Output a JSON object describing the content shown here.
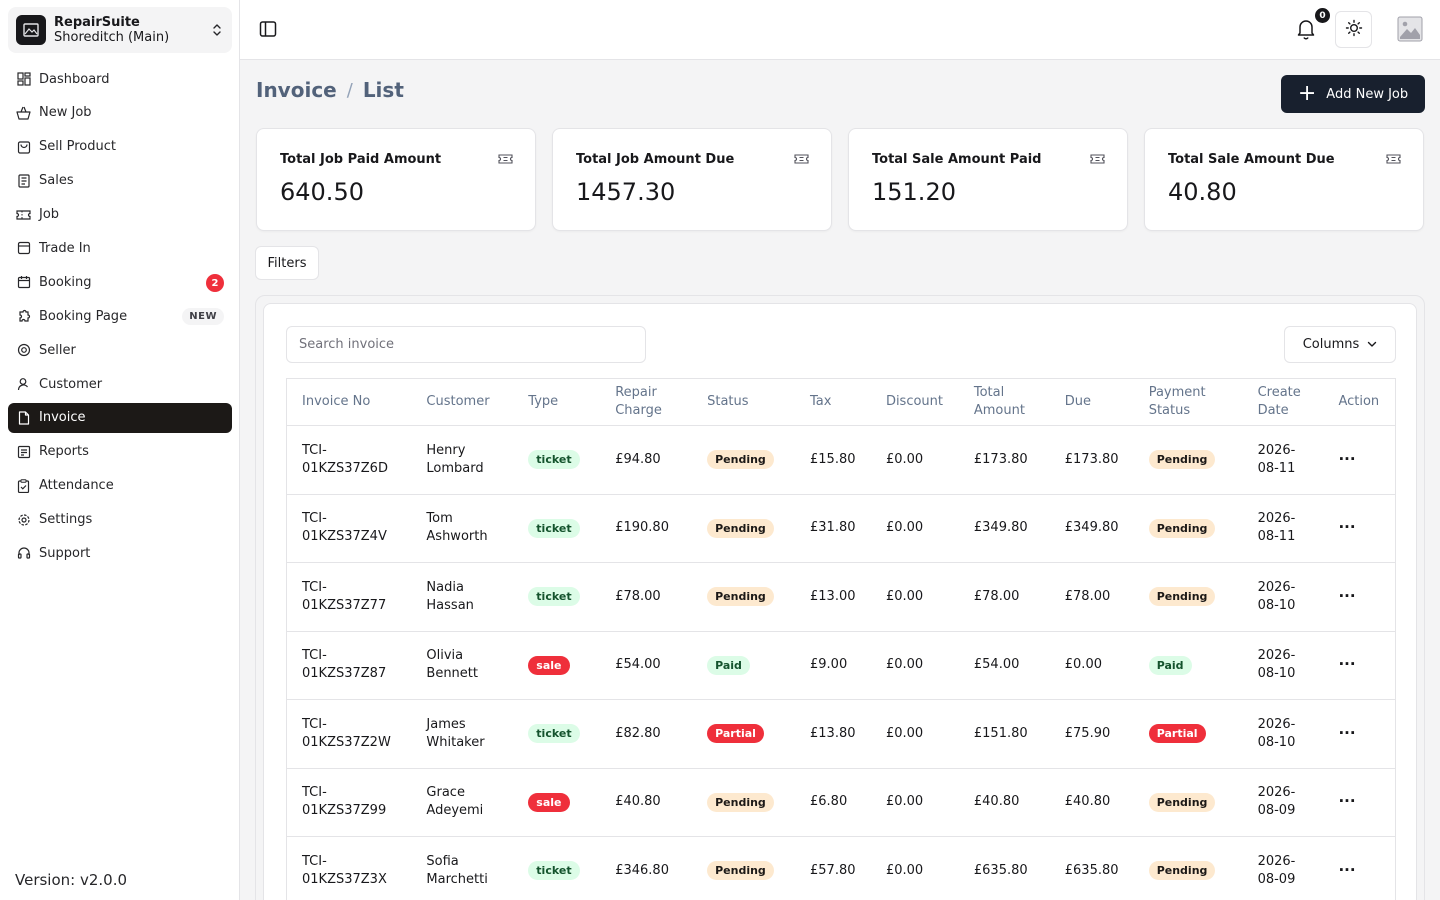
{
  "store": {
    "name": "RepairSuite",
    "branch": "Shoreditch (Main)"
  },
  "nav": [
    {
      "label": "Dashboard",
      "icon": "dashboard-icon"
    },
    {
      "label": "New Job",
      "icon": "new-job-icon"
    },
    {
      "label": "Sell Product",
      "icon": "sell-product-icon"
    },
    {
      "label": "Sales",
      "icon": "sales-icon"
    },
    {
      "label": "Job",
      "icon": "ticket-icon"
    },
    {
      "label": "Trade In",
      "icon": "trade-in-icon"
    },
    {
      "label": "Booking",
      "icon": "calendar-icon",
      "badge": "2"
    },
    {
      "label": "Booking Page",
      "icon": "booking-page-icon",
      "tag": "NEW"
    },
    {
      "label": "Seller",
      "icon": "at-sign-icon"
    },
    {
      "label": "Customer",
      "icon": "user-icon"
    },
    {
      "label": "Invoice",
      "icon": "file-icon",
      "active": true
    },
    {
      "label": "Reports",
      "icon": "reports-icon"
    },
    {
      "label": "Attendance",
      "icon": "clipboard-icon"
    },
    {
      "label": "Settings",
      "icon": "gear-icon"
    },
    {
      "label": "Support",
      "icon": "headphones-icon"
    }
  ],
  "version": "Version: v2.0.0",
  "topbar": {
    "notification_count": "0"
  },
  "breadcrumb": {
    "section": "Invoice",
    "sep": "/",
    "page": "List"
  },
  "add_job_label": "Add New Job",
  "stats": [
    {
      "title": "Total Job Paid Amount",
      "value": "640.50"
    },
    {
      "title": "Total Job Amount Due",
      "value": "1457.30"
    },
    {
      "title": "Total Sale Amount Paid",
      "value": "151.20"
    },
    {
      "title": "Total Sale Amount Due",
      "value": "40.80"
    }
  ],
  "filters_label": "Filters",
  "search": {
    "placeholder": "Search invoice",
    "value": ""
  },
  "columns_label": "Columns",
  "table": {
    "headers": [
      "Invoice No",
      "Customer",
      "Type",
      "Repair Charge",
      "Status",
      "Tax",
      "Discount",
      "Total Amount",
      "Due",
      "Payment Status",
      "Create Date",
      "Action"
    ],
    "rows": [
      {
        "invoice": "TCI-01KZS37Z6D",
        "customer": "Henry Lombard",
        "type": "ticket",
        "repair": "£94.80",
        "status": "Pending",
        "tax": "£15.80",
        "discount": "£0.00",
        "total": "£173.80",
        "due": "£173.80",
        "payment": "Pending",
        "date": "2026-08-11"
      },
      {
        "invoice": "TCI-01KZS37Z4V",
        "customer": "Tom Ashworth",
        "type": "ticket",
        "repair": "£190.80",
        "status": "Pending",
        "tax": "£31.80",
        "discount": "£0.00",
        "total": "£349.80",
        "due": "£349.80",
        "payment": "Pending",
        "date": "2026-08-11"
      },
      {
        "invoice": "TCI-01KZS37Z77",
        "customer": "Nadia Hassan",
        "type": "ticket",
        "repair": "£78.00",
        "status": "Pending",
        "tax": "£13.00",
        "discount": "£0.00",
        "total": "£78.00",
        "due": "£78.00",
        "payment": "Pending",
        "date": "2026-08-10"
      },
      {
        "invoice": "TCI-01KZS37Z87",
        "customer": "Olivia Bennett",
        "type": "sale",
        "repair": "£54.00",
        "status": "Paid",
        "tax": "£9.00",
        "discount": "£0.00",
        "total": "£54.00",
        "due": "£0.00",
        "payment": "Paid",
        "date": "2026-08-10"
      },
      {
        "invoice": "TCI-01KZS37Z2W",
        "customer": "James Whitaker",
        "type": "ticket",
        "repair": "£82.80",
        "status": "Partial",
        "tax": "£13.80",
        "discount": "£0.00",
        "total": "£151.80",
        "due": "£75.90",
        "payment": "Partial",
        "date": "2026-08-10"
      },
      {
        "invoice": "TCI-01KZS37Z99",
        "customer": "Grace Adeyemi",
        "type": "sale",
        "repair": "£40.80",
        "status": "Pending",
        "tax": "£6.80",
        "discount": "£0.00",
        "total": "£40.80",
        "due": "£40.80",
        "payment": "Pending",
        "date": "2026-08-09"
      },
      {
        "invoice": "TCI-01KZS37Z3X",
        "customer": "Sofia Marchetti",
        "type": "ticket",
        "repair": "£346.80",
        "status": "Pending",
        "tax": "£57.80",
        "discount": "£0.00",
        "total": "£635.80",
        "due": "£635.80",
        "payment": "Pending",
        "date": "2026-08-09"
      }
    ]
  },
  "colors": {
    "sidebar_active": "#1c1917",
    "primary_button": "#18202e",
    "danger": "#ef2f3b",
    "pending_bg": "#fde9cf",
    "success_bg": "#dcfce7"
  }
}
